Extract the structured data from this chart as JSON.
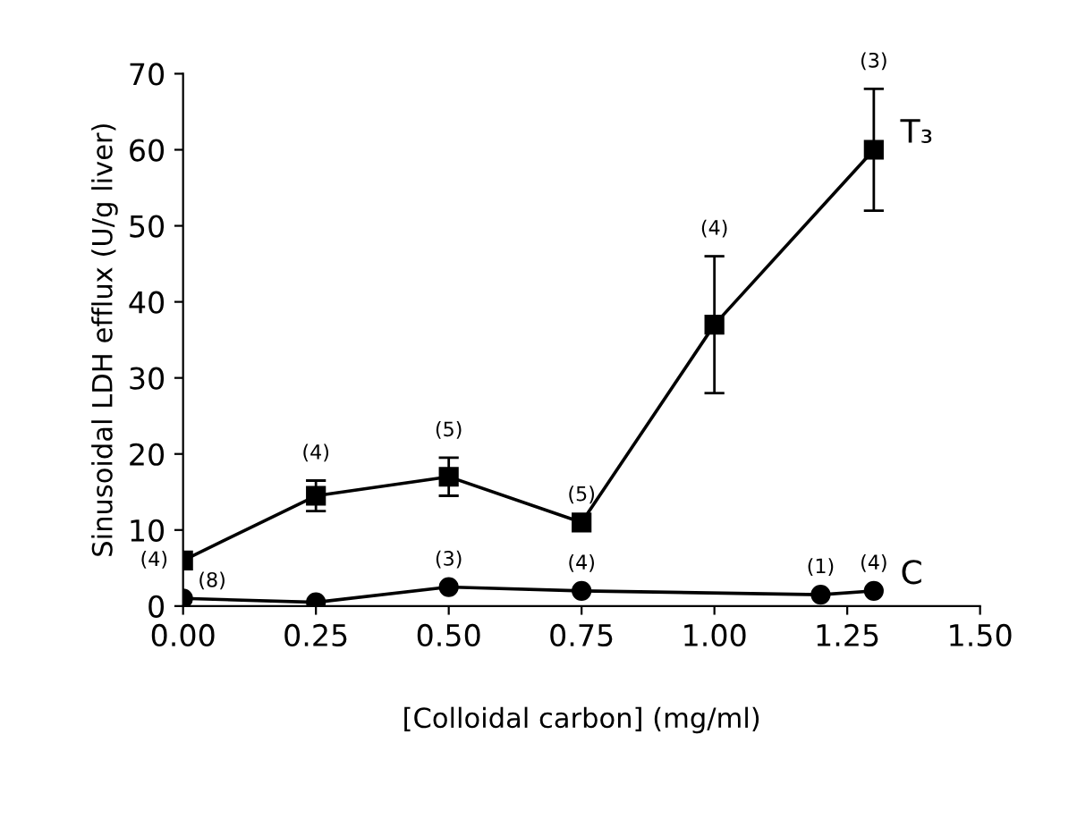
{
  "chart_data": {
    "type": "line",
    "xlabel": "[Colloidal carbon] (mg/ml)",
    "ylabel": "Sinusoidal LDH efflux (U/g liver)",
    "xlim": [
      0,
      1.5
    ],
    "xticks": [
      {
        "value": 0,
        "label": "0.00"
      },
      {
        "value": 0.25,
        "label": "0.25"
      },
      {
        "value": 0.5,
        "label": "0.50"
      },
      {
        "value": 0.75,
        "label": "0.75"
      },
      {
        "value": 1,
        "label": "1.00"
      },
      {
        "value": 1.25,
        "label": "1.25"
      },
      {
        "value": 1.5,
        "label": "1.50"
      }
    ],
    "ylim": [
      0,
      70
    ],
    "yticks": [
      0,
      10,
      20,
      30,
      40,
      50,
      60,
      70
    ],
    "grid": false,
    "legend": false,
    "line_style": "solid",
    "series": [
      {
        "name": "T₃",
        "color": "#000000",
        "marker": "square",
        "x": [
          0,
          0.25,
          0.5,
          0.75,
          1.0,
          1.3
        ],
        "values": [
          6,
          14.5,
          17,
          11,
          37,
          60
        ],
        "errors": [
          null,
          2,
          2.5,
          null,
          9,
          8
        ]
      },
      {
        "name": "C",
        "color": "#000000",
        "marker": "circle",
        "x": [
          0,
          0.25,
          0.5,
          0.75,
          1.2,
          1.3
        ],
        "values": [
          1,
          0.5,
          2.5,
          2,
          1.5,
          2
        ],
        "errors": [
          null,
          null,
          null,
          null,
          null,
          null
        ]
      }
    ],
    "annotations": [
      {
        "text": "(4)",
        "x": 0,
        "y": 6
      },
      {
        "text": "(4)",
        "x": 0.25,
        "y": 14.5
      },
      {
        "text": "(5)",
        "x": 0.5,
        "y": 17
      },
      {
        "text": "(5)",
        "x": 0.75,
        "y": 11
      },
      {
        "text": "(4)",
        "x": 1.0,
        "y": 46
      },
      {
        "text": "(3)",
        "x": 1.3,
        "y": 68
      },
      {
        "text": "(8)",
        "x": 0,
        "y": 1
      },
      {
        "text": "(3)",
        "x": 0.5,
        "y": 2.5
      },
      {
        "text": "(4)",
        "x": 0.75,
        "y": 2
      },
      {
        "text": "(1)",
        "x": 1.2,
        "y": 1.5
      },
      {
        "text": "(4)",
        "x": 1.3,
        "y": 2
      }
    ]
  }
}
